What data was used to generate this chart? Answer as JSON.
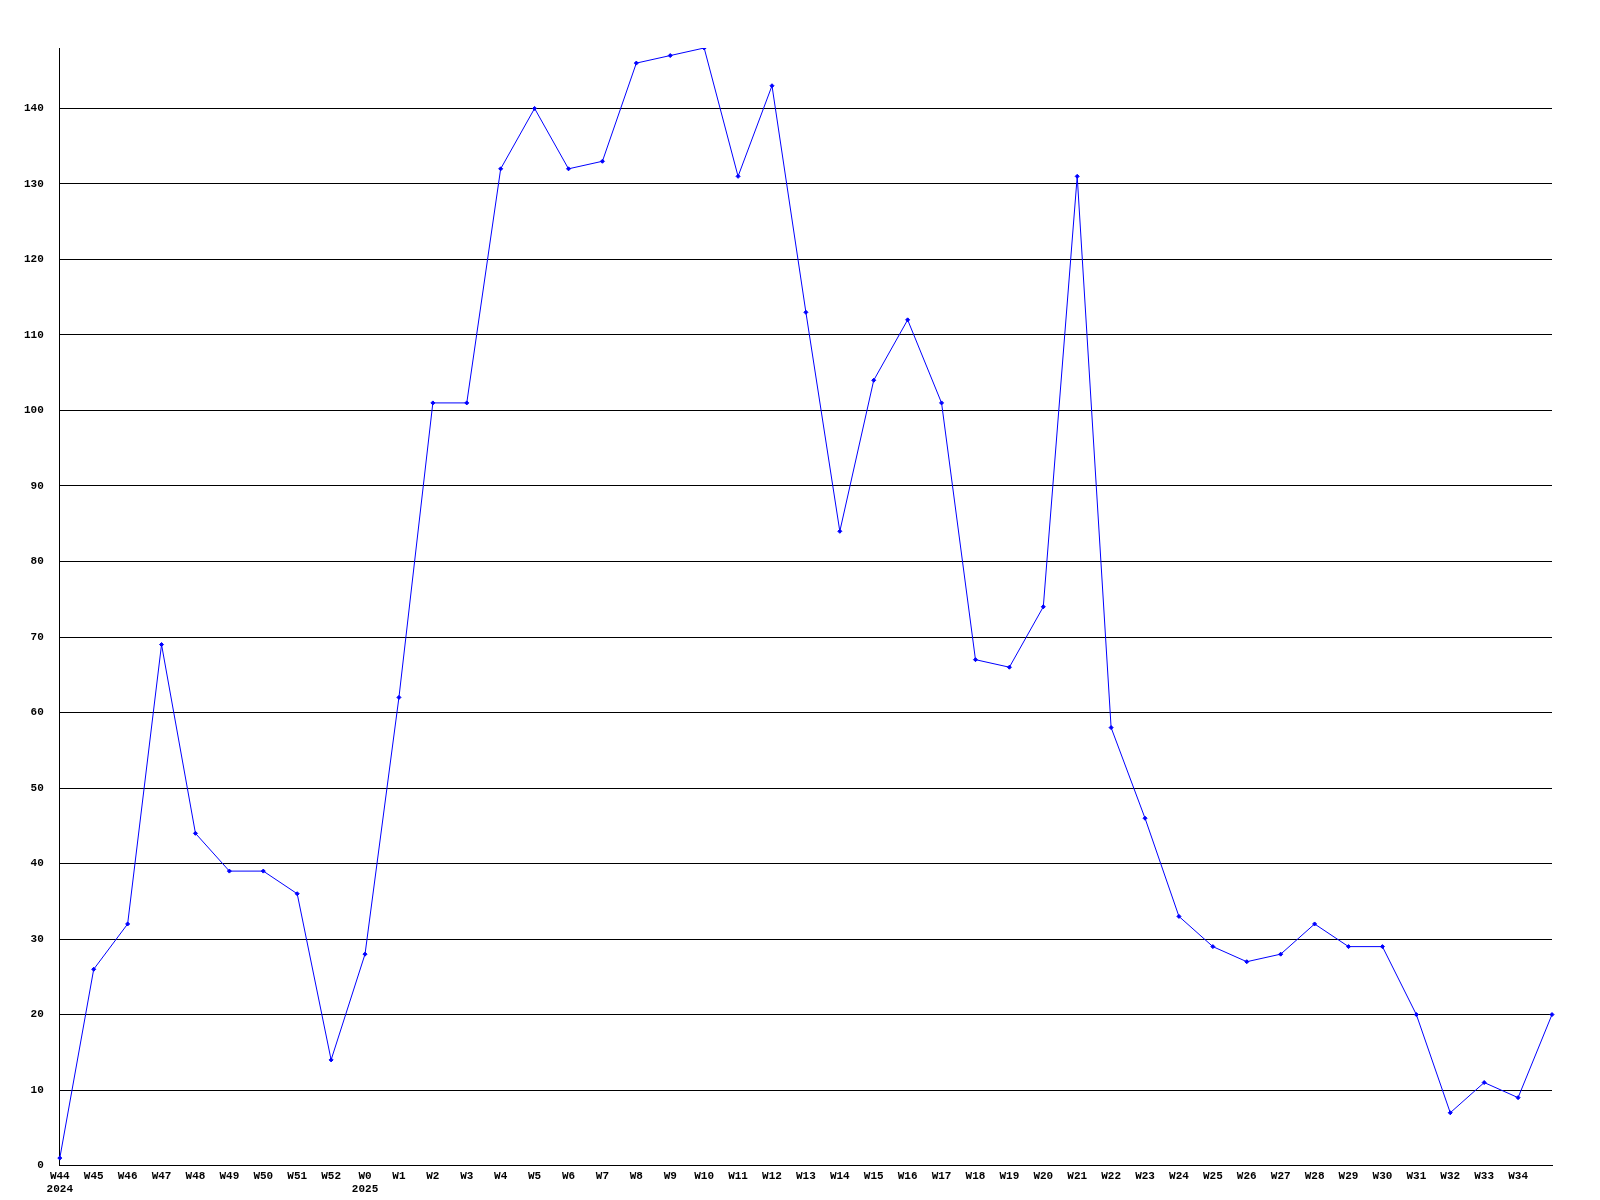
{
  "chart_data": {
    "type": "line",
    "categories": [
      "W44\n2024",
      "W45",
      "W46",
      "W47",
      "W48",
      "W49",
      "W50",
      "W51",
      "W52",
      "W0\n2025",
      "W1",
      "W2",
      "W3",
      "W4",
      "W5",
      "W6",
      "W7",
      "W8",
      "W9",
      "W10",
      "W11",
      "W12",
      "W13",
      "W14",
      "W15",
      "W16",
      "W17",
      "W18",
      "W19",
      "W20",
      "W21",
      "W22",
      "W23",
      "W24",
      "W25",
      "W26",
      "W27",
      "W28",
      "W29",
      "W30",
      "W31",
      "W32",
      "W33",
      "W34",
      null
    ],
    "values": [
      1,
      26,
      32,
      69,
      44,
      39,
      39,
      36,
      14,
      28,
      62,
      101,
      101,
      132,
      140,
      132,
      133,
      146,
      147,
      148,
      131,
      143,
      113,
      84,
      104,
      112,
      101,
      67,
      66,
      74,
      131,
      58,
      46,
      33,
      29,
      27,
      28,
      32,
      29,
      29,
      20,
      7,
      11,
      9,
      20
    ],
    "color": "#0000ff",
    "ylim": [
      0,
      148
    ],
    "yticks": [
      0,
      10,
      20,
      30,
      40,
      50,
      60,
      70,
      80,
      90,
      100,
      110,
      120,
      130,
      140
    ],
    "grid": "y",
    "legend": false,
    "marker": "diamond",
    "line_style": "solid"
  }
}
